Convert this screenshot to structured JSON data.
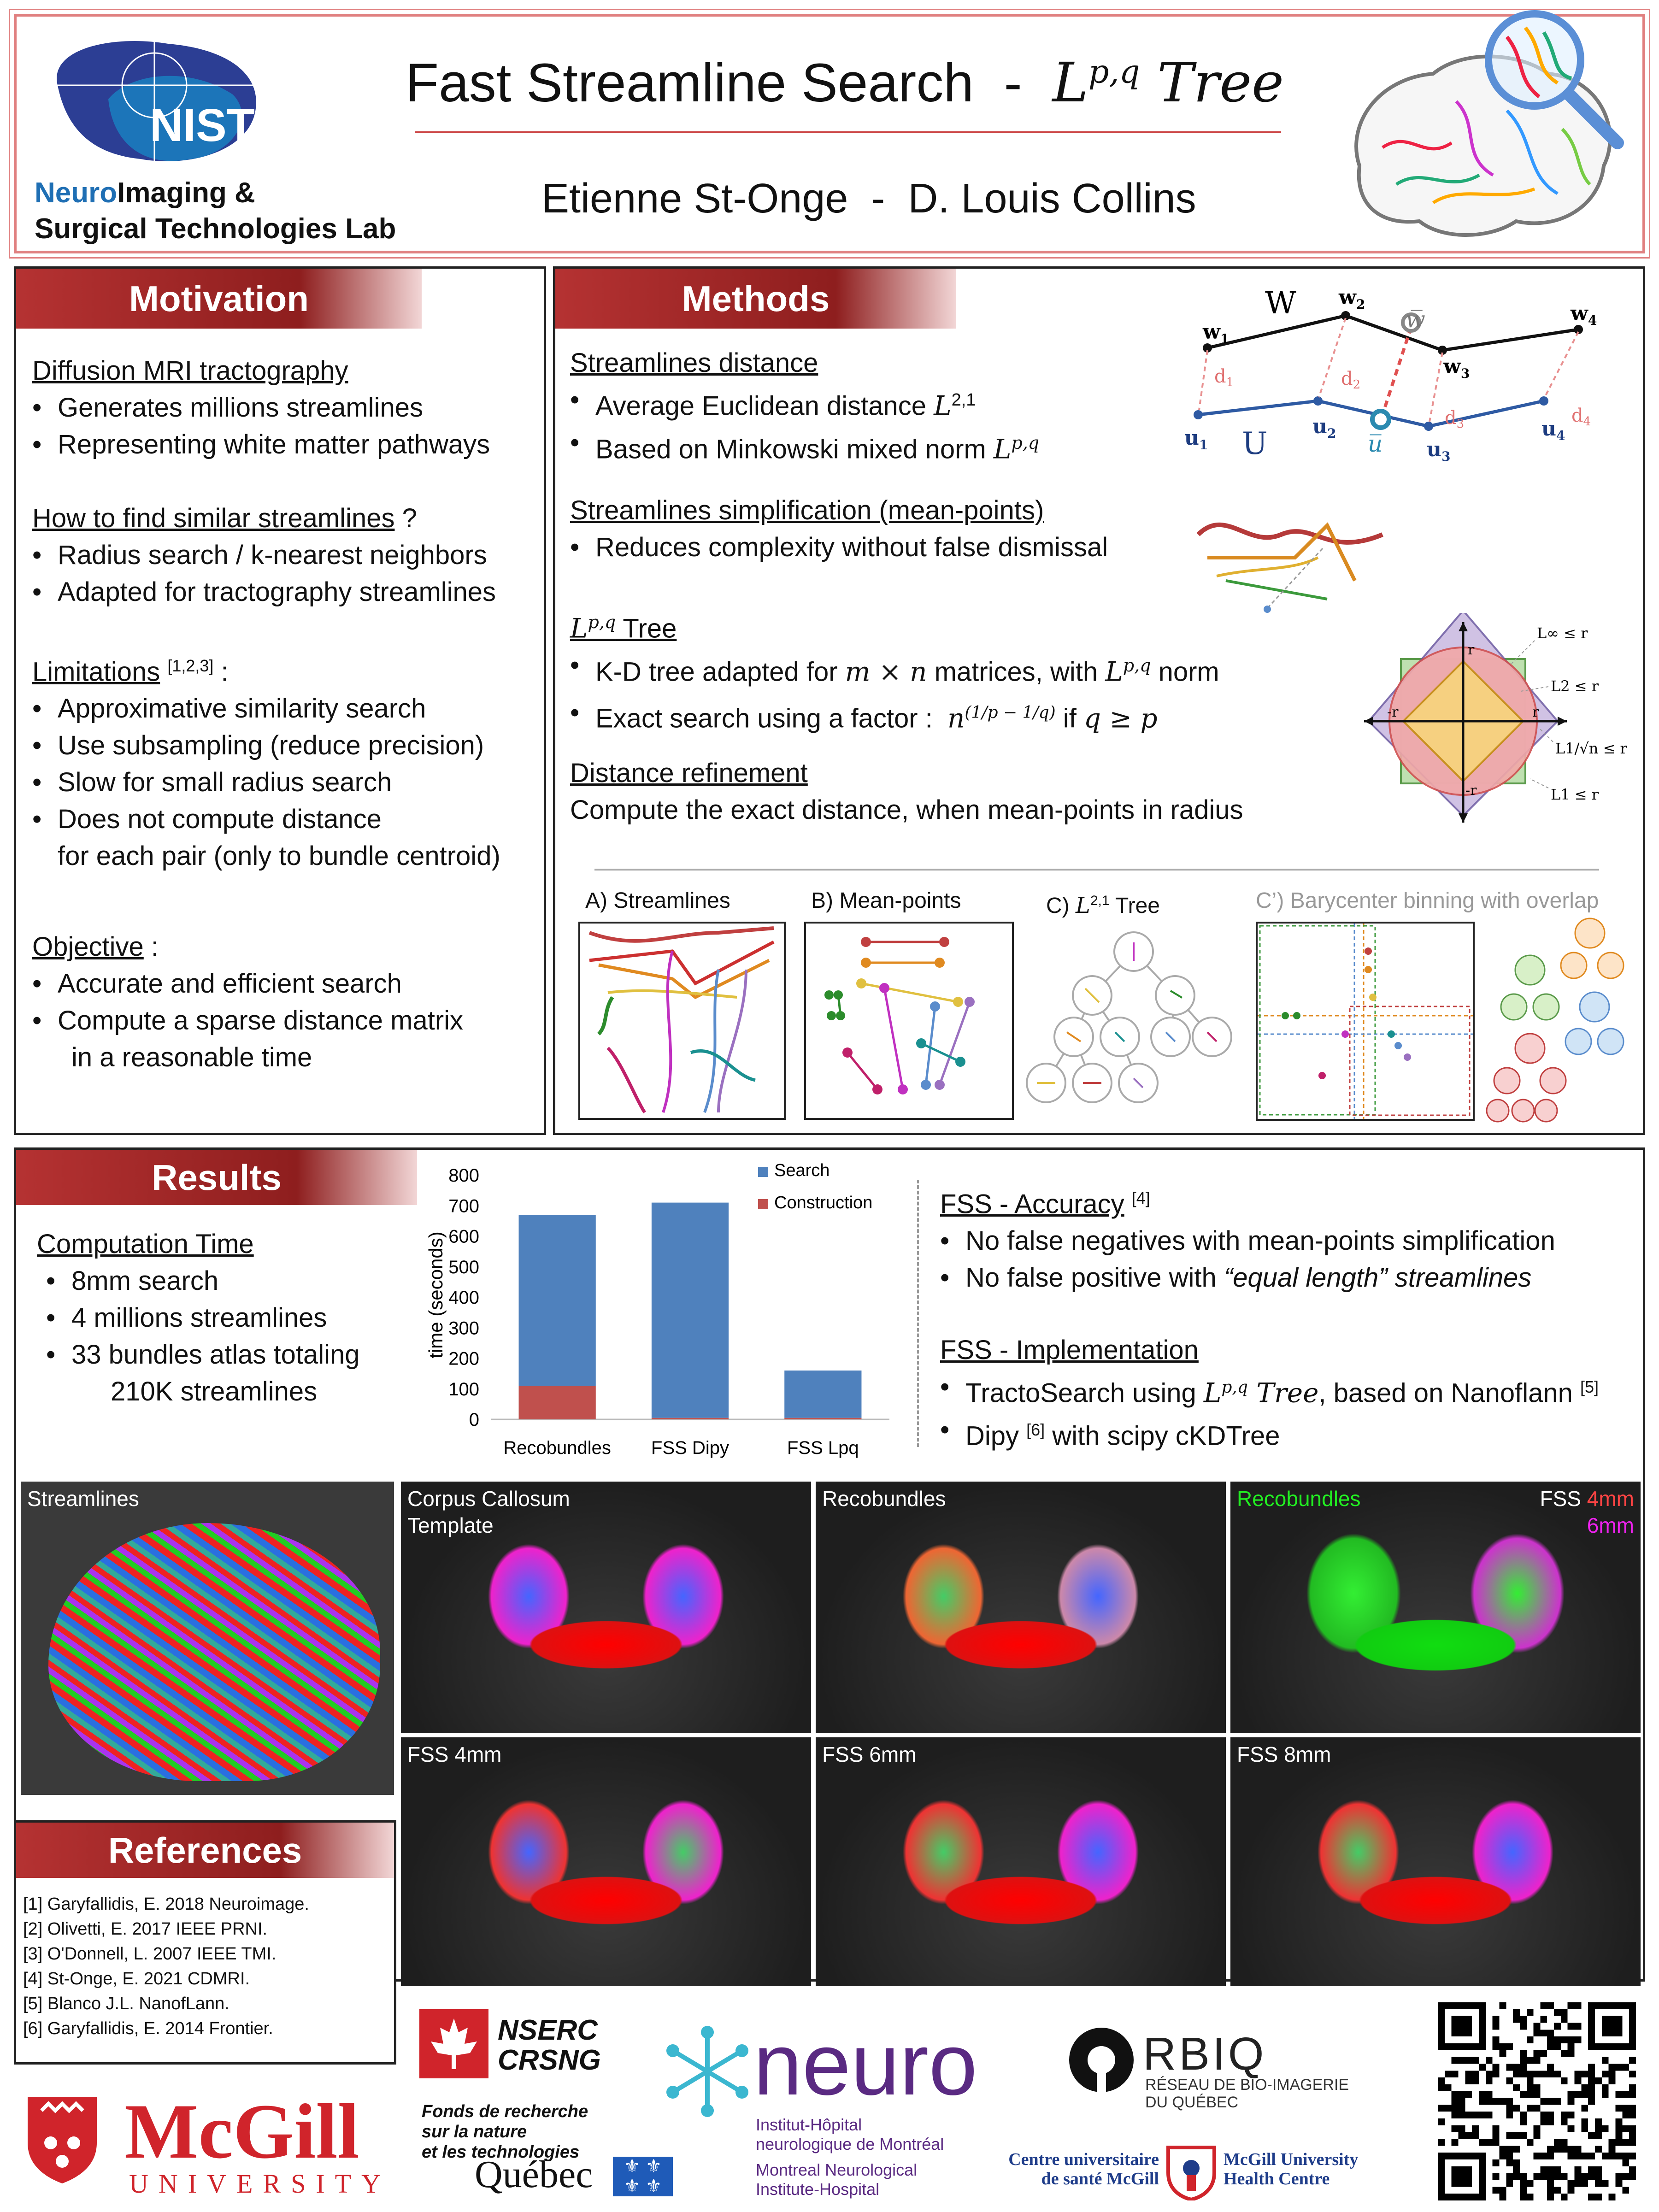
{
  "header": {
    "title_prefix": "Fast Streamline Search  -  ",
    "title_math": "L",
    "title_sup": "p,q",
    "title_suffix": " Tree",
    "authors": "Etienne St-Onge  -  D. Louis Collins",
    "lab_logo_text": "NIST",
    "lab_name_line1_a": "Neuro",
    "lab_name_line1_b": "Imaging &",
    "lab_name_line2": "Surgical Technologies Lab"
  },
  "motivation": {
    "title": "Motivation",
    "s1_head": "Diffusion MRI tractography",
    "s1_items": [
      "Generates millions streamlines",
      "Representing white matter pathways"
    ],
    "s2_head": "How to find similar streamlines",
    "s2_tail": " ?",
    "s2_items": [
      "Radius search / k-nearest neighbors",
      "Adapted for tractography streamlines"
    ],
    "s3_head": "Limitations",
    "s3_refs": "[1,2,3]",
    "s3_tail": " :",
    "s3_items": [
      "Approximative similarity search",
      "Use subsampling (reduce precision)",
      "Slow for small radius search",
      "Does not compute distance"
    ],
    "s3_cont": "for each pair (only to bundle centroid)",
    "s4_head": "Objective",
    "s4_tail": " :",
    "s4_items": [
      "Accurate and efficient search",
      "Compute a sparse distance matrix"
    ],
    "s4_cont": "in a reasonable time"
  },
  "methods": {
    "title": "Methods",
    "m1_head": "Streamlines distance",
    "m1_i1": "Average Euclidean distance ",
    "m1_i1_sup": "2,1",
    "m1_i2": "Based on Minkowski mixed norm ",
    "m1_i2_sup": "p,q",
    "m2_head": "Streamlines simplification (mean-points)",
    "m2_i1": "Reduces complexity without false dismissal",
    "m3_sup": "p,q",
    "m3_head": " Tree",
    "m3_i1a": "K-D tree adapted for ",
    "m3_i1m": "m × n",
    "m3_i1b": " matrices, with ",
    "m3_i1sup": "p,q",
    "m3_i1c": " norm",
    "m3_i2a": "Exact search using a factor :  ",
    "m3_i2m": "n",
    "m3_i2exp": "(1/p − 1/q)",
    "m3_i2b": " if ",
    "m3_i2c": "q ≥ p",
    "m4_head": "Distance refinement",
    "m4_text": "Compute the exact distance, when mean-points in radius",
    "diagram": {
      "W": "W",
      "U": "U",
      "w1": "w",
      "w1s": "1",
      "w2": "w",
      "w2s": "2",
      "w3": "w",
      "w3s": "3",
      "w4": "w",
      "w4s": "4",
      "u1": "u",
      "u1s": "1",
      "u2": "u",
      "u2s": "2",
      "u3": "u",
      "u3s": "3",
      "u4": "u",
      "u4s": "4",
      "d1": "d",
      "d1s": "1",
      "d2": "d",
      "d2s": "2",
      "d3": "d",
      "d3s": "3",
      "d4": "d",
      "d4s": "4",
      "wbar": "w",
      "ubar": "u"
    },
    "norms": {
      "linf": "L∞ ≤ r",
      "l2": "L2 ≤ r",
      "l1n": "L1/√n ≤ r",
      "l1": "L1 ≤ r",
      "r_top": "r",
      "r_left": "-r",
      "r_right": "r",
      "r_bottom": "-r"
    },
    "panels": {
      "a": "A) Streamlines",
      "b": "B) Mean-points",
      "c_pre": "C) ",
      "c_sup": "2,1",
      "c_post": " Tree",
      "c2": "C’) Barycenter binning with overlap"
    }
  },
  "results": {
    "title": "Results",
    "ct_head": "Computation Time",
    "ct_items": [
      "8mm search",
      "4 millions streamlines",
      "33 bundles atlas totaling"
    ],
    "ct_cont": "210K streamlines",
    "acc_head": "FSS - Accuracy",
    "acc_ref": "[4]",
    "acc_i1": "No false negatives with mean-points simplification",
    "acc_i2a": "No false positive with ",
    "acc_i2b": "“equal length” streamlines",
    "impl_head": "FSS - Implementation",
    "impl_i1a": "TractoSearch using ",
    "impl_i1sup": "p,q",
    "impl_i1m": " Tree",
    "impl_i1b": ", based on Nanoflann ",
    "impl_i1ref": "[5]",
    "impl_i2a": "Dipy ",
    "impl_i2ref": "[6]",
    "impl_i2b": " with scipy cKDTree",
    "images": {
      "streamlines": "Streamlines",
      "cc1": "Corpus Callosum",
      "cc2": "Template",
      "reco": "Recobundles",
      "reco_green": "Recobundles",
      "fss": "FSS ",
      "fss4": "4mm",
      "fss6": "6mm",
      "f4": "FSS 4mm",
      "f6": "FSS 6mm",
      "f8": "FSS 8mm"
    }
  },
  "chart_data": {
    "type": "bar",
    "stacked": true,
    "categories": [
      "Recobundles",
      "FSS Dipy",
      "FSS Lpq"
    ],
    "series": [
      {
        "name": "Construction",
        "values": [
          110,
          5,
          5
        ],
        "color": "#c0504d"
      },
      {
        "name": "Search",
        "values": [
          560,
          705,
          155
        ],
        "color": "#4f81bd"
      }
    ],
    "ylabel": "time (seconds)",
    "ylim": [
      0,
      800
    ],
    "yticks": [
      0,
      100,
      200,
      300,
      400,
      500,
      600,
      700,
      800
    ],
    "legend": "top-right",
    "grid": false
  },
  "references": {
    "title": "References",
    "items": [
      "[1] Garyfallidis, E. 2018 Neuroimage.",
      "[2] Olivetti, E. 2017 IEEE PRNI.",
      "[3] O'Donnell, L. 2007 IEEE TMI.",
      "[4] St-Onge, E. 2021 CDMRI.",
      "[5] Blanco J.L. NanofLann.",
      "[6] Garyfallidis, E. 2014 Frontier."
    ]
  },
  "footer": {
    "mcgill": "McGill",
    "mcgill_sub": "UNIVERSITY",
    "nserc1": "NSERC",
    "nserc2": "CRSNG",
    "frq1": "Fonds de recherche",
    "frq2": "sur la nature",
    "frq3": "et les technologies",
    "quebec": "Québec",
    "neuro": "neuro",
    "neuro1": "Institut-Hôpital",
    "neuro2": "neurologique de Montréal",
    "neuro3": "Montreal Neurological",
    "neuro4": "Institute-Hospital",
    "rbiq": "RBIQ",
    "rbiq1": "RÉSEAU DE BIO-IMAGERIE",
    "rbiq2": "DU QUÉBEC",
    "cusm1": "Centre universitaire",
    "cusm2": "de santé McGill",
    "muhc1": "McGill University",
    "muhc2": "Health Centre"
  },
  "colors": {
    "accent": "#b53232",
    "border": "#d66",
    "blue": "#1f4e9c",
    "search": "#4f81bd",
    "construction": "#c0504d"
  }
}
